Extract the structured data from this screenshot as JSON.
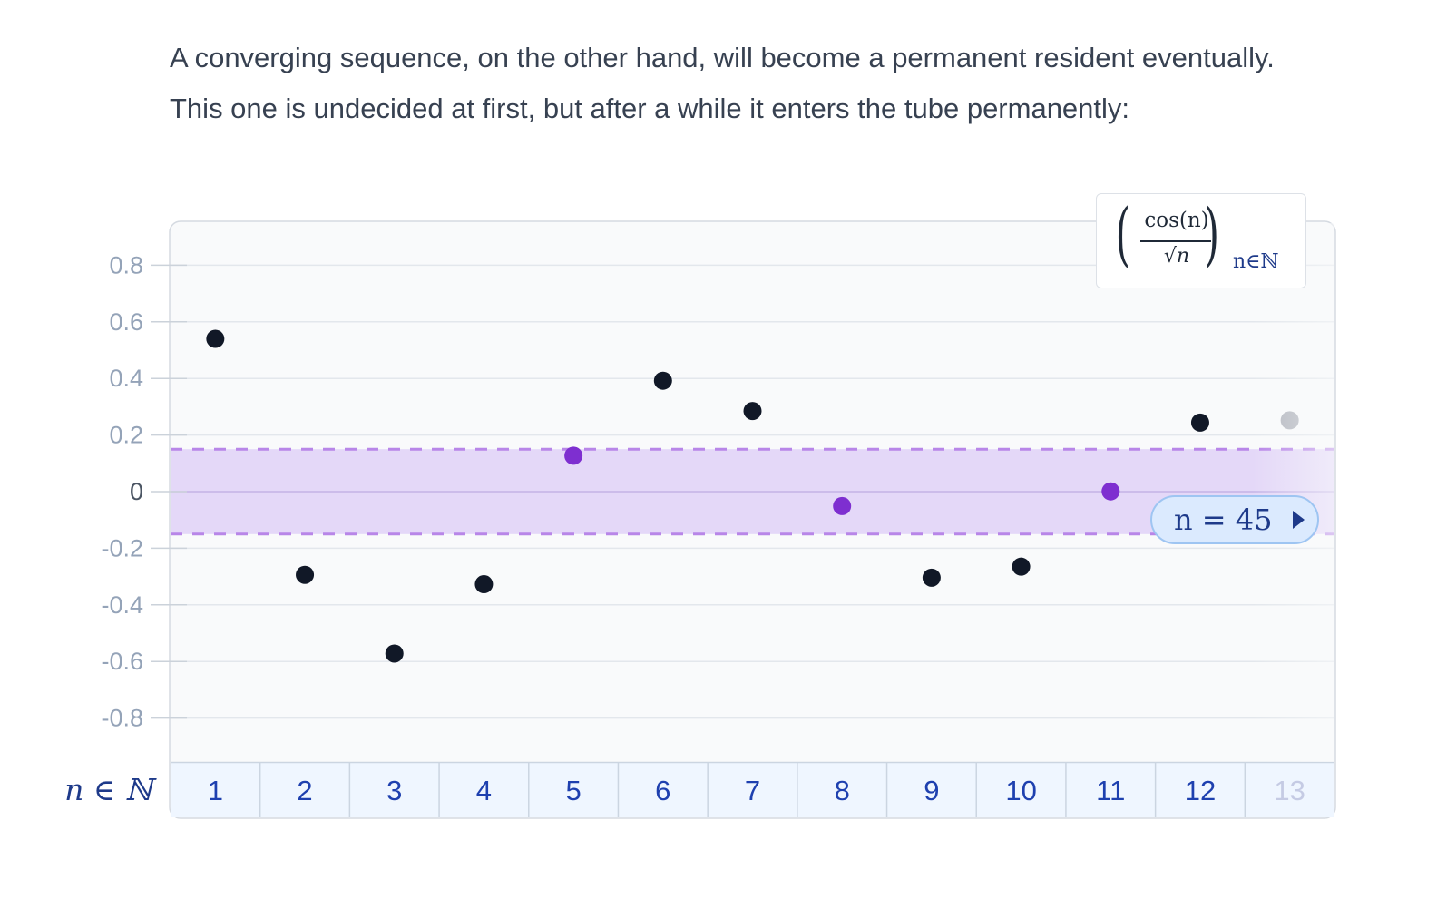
{
  "intro_text": "A converging sequence, on the other hand, will become a permanent resident eventually. This one is undecided at first, but after a while it enters the tube permanently:",
  "formula": {
    "left_paren": "(",
    "numerator": "cos(n)",
    "denominator": "√n",
    "right_paren": ")",
    "subscript": "n∈ℕ"
  },
  "slider": {
    "label": "n = 45",
    "icon": "play-right-icon"
  },
  "colors": {
    "point_outside": "#111827",
    "point_inside": "#7e2fd0",
    "point_faded": "#b4b7bf",
    "tube_fill": "#e4d8f8",
    "tube_border": "#b886e8",
    "axis_text": "#94a3b8",
    "index_text": "#1e40af"
  },
  "chart_data": {
    "type": "scatter",
    "index_axis_label": "n ∈ ℕ",
    "x": [
      1,
      2,
      3,
      4,
      5,
      6,
      7,
      8,
      9,
      10,
      11,
      12,
      13
    ],
    "y": [
      0.54,
      -0.294,
      -0.572,
      -0.327,
      0.127,
      0.392,
      0.285,
      -0.051,
      -0.304,
      -0.265,
      0.001,
      0.244,
      0.252
    ],
    "inside_tube": [
      false,
      false,
      false,
      false,
      true,
      false,
      false,
      true,
      false,
      false,
      true,
      false,
      false
    ],
    "faded": [
      false,
      false,
      false,
      false,
      false,
      false,
      false,
      false,
      false,
      false,
      false,
      false,
      true
    ],
    "tube": [
      -0.15,
      0.15
    ],
    "ylim": [
      -0.96,
      0.96
    ],
    "yticks": [
      0.8,
      0.6,
      0.4,
      0.2,
      0,
      -0.2,
      -0.4,
      -0.6,
      -0.8
    ],
    "ytick_labels": [
      "0.8",
      "0.6",
      "0.4",
      "0.2",
      "0",
      "-0.2",
      "-0.4",
      "-0.6",
      "-0.8"
    ],
    "grid": true
  }
}
